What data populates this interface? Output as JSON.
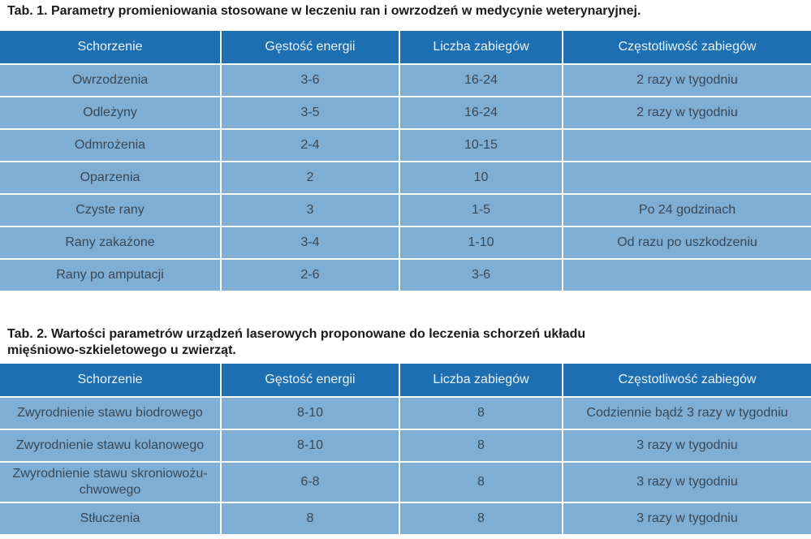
{
  "table1": {
    "caption": "Tab. 1. Parametry promieniowania stosowane w leczeniu ran i owrzodzeń w medycynie weterynaryjnej.",
    "headers": [
      "Schorzenie",
      "Gęstość energii",
      "Liczba zabiegów",
      "Częstotliwość zabiegów"
    ],
    "rows": [
      [
        "Owrzodzenia",
        "3-6",
        "16-24",
        "2 razy w tygodniu"
      ],
      [
        "Odleżyny",
        "3-5",
        "16-24",
        "2 razy w tygodniu"
      ],
      [
        "Odmrożenia",
        "2-4",
        "10-15",
        ""
      ],
      [
        "Oparzenia",
        "2",
        "10",
        ""
      ],
      [
        "Czyste rany",
        "3",
        "1-5",
        "Po 24 godzinach"
      ],
      [
        "Rany zakażone",
        "3-4",
        "1-10",
        "Od razu po uszkodzeniu"
      ],
      [
        "Rany po amputacji",
        "2-6",
        "3-6",
        ""
      ]
    ]
  },
  "table2": {
    "caption": "Tab. 2. Wartości parametrów urządzeń laserowych proponowane do leczenia schorzeń układu mięśniowo-szkieletowego u zwierząt.",
    "headers": [
      "Schorzenie",
      "Gęstość energii",
      "Liczba zabiegów",
      "Częstotliwość zabiegów"
    ],
    "rows": [
      [
        "Zwyrodnienie stawu biodrowego",
        "8-10",
        "8",
        "Codziennie bądź 3 razy w tygodniu"
      ],
      [
        "Zwyrodnienie stawu kolanowego",
        "8-10",
        "8",
        "3 razy w tygodniu"
      ],
      [
        "Zwyrodnienie stawu skroniowożu-chwowego",
        "6-8",
        "8",
        "3 razy w tygodniu"
      ],
      [
        "Stłuczenia",
        "8",
        "8",
        "3 razy w tygodniu"
      ]
    ]
  },
  "colors": {
    "header_bg": "#1e6fb1",
    "cell_bg": "#7eaed4",
    "border": "#ffffff"
  }
}
